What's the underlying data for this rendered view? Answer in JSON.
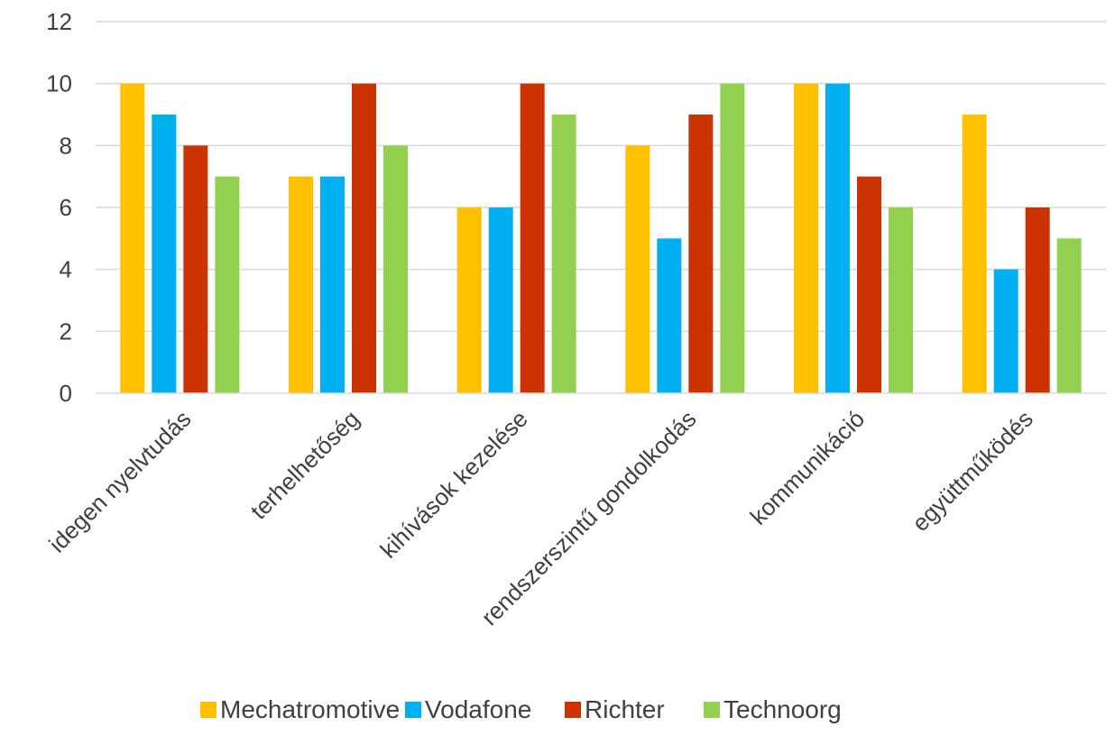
{
  "chart_data": {
    "type": "bar",
    "title": "",
    "xlabel": "",
    "ylabel": "",
    "ylim": [
      0,
      12
    ],
    "yticks": [
      0,
      2,
      4,
      6,
      8,
      10,
      12
    ],
    "grid": true,
    "legend_position": "bottom",
    "categories": [
      "idegen nyelvtudás",
      "terhelhetőség",
      "kihívások kezelése",
      "rendszerszintű gondolkodás",
      "kommunikáció",
      "együttműködés"
    ],
    "series": [
      {
        "name": "Mechatromotive",
        "color": "#ffc000",
        "values": [
          10,
          7,
          6,
          8,
          10,
          9
        ]
      },
      {
        "name": "Vodafone",
        "color": "#00b0f0",
        "values": [
          9,
          7,
          6,
          5,
          10,
          4
        ]
      },
      {
        "name": "Richter",
        "color": "#cc3300",
        "values": [
          8,
          10,
          10,
          9,
          7,
          6
        ]
      },
      {
        "name": "Technoorg",
        "color": "#92d050",
        "values": [
          7,
          8,
          9,
          10,
          6,
          5
        ]
      }
    ]
  }
}
